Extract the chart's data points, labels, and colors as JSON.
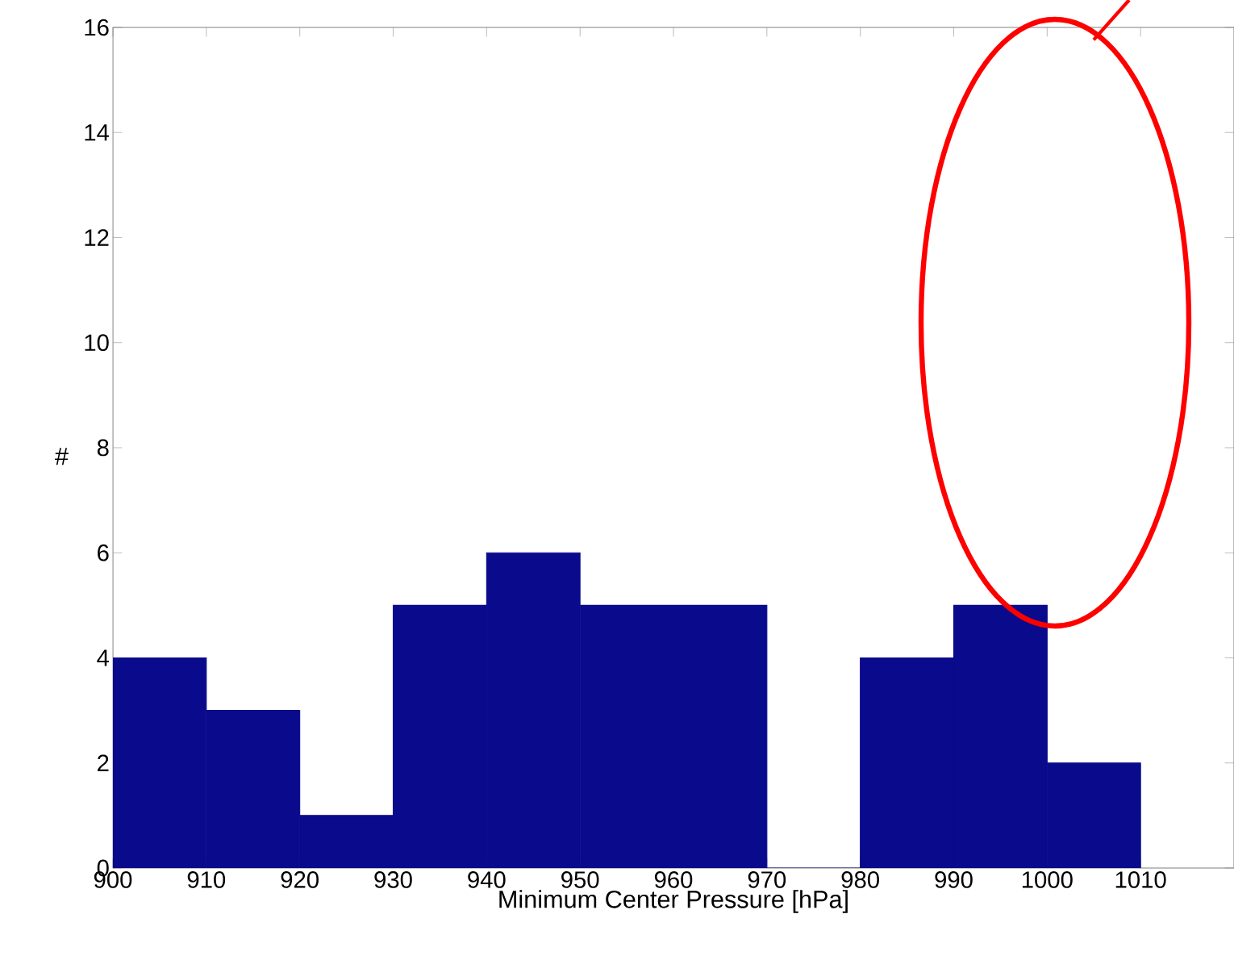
{
  "chart_data": {
    "type": "histogram",
    "xlabel": "Minimum Center Pressure [hPa]",
    "ylabel": "#",
    "bins": [
      900,
      910,
      920,
      930,
      940,
      950,
      960,
      970,
      980,
      990,
      1000,
      1010
    ],
    "values": [
      4,
      3,
      1,
      5,
      6,
      5,
      5,
      0,
      4,
      5,
      2
    ],
    "color": "#0a0a8c",
    "xlim": [
      900,
      1020
    ],
    "ylim": [
      0,
      16
    ],
    "xticks": [
      900,
      910,
      920,
      930,
      940,
      950,
      960,
      970,
      980,
      990,
      1000,
      1010
    ],
    "yticks": [
      0,
      2,
      4,
      6,
      8,
      10,
      12,
      14,
      16
    ],
    "grid": false
  }
}
